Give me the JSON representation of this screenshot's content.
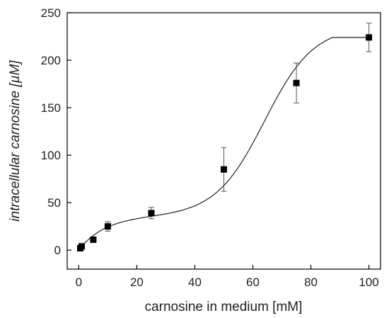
{
  "chart_data": {
    "type": "scatter",
    "title": "",
    "xlabel": "carnosine in medium [mM]",
    "ylabel": "intracellular carnosine [µM]",
    "xlim": [
      -4,
      104
    ],
    "ylim": [
      -20,
      250
    ],
    "xticks": [
      0,
      20,
      40,
      60,
      80,
      100
    ],
    "yticks": [
      0,
      50,
      100,
      150,
      200,
      250
    ],
    "grid": false,
    "legend": "none",
    "series": [
      {
        "marker": "filled-square",
        "x": [
          0.5,
          1,
          5,
          10,
          25,
          50,
          75,
          100
        ],
        "y": [
          2,
          4,
          11,
          25,
          39,
          85,
          176,
          224
        ],
        "err": [
          1,
          1.5,
          2.5,
          5,
          6,
          23,
          21,
          15
        ]
      }
    ],
    "fit_curve": {
      "style": "smooth line",
      "x": [
        0,
        2.5,
        5,
        7.5,
        10,
        12.5,
        15,
        17.5,
        20,
        22.5,
        25,
        27.5,
        30,
        32.5,
        35,
        37.5,
        40,
        42.5,
        45,
        47.5,
        50,
        52.5,
        55,
        57.5,
        60,
        62.5,
        65,
        67.5,
        70,
        72.5,
        75,
        77.5,
        80,
        82.5,
        85,
        87.5,
        90,
        92.5,
        95,
        97.5,
        100
      ],
      "y": [
        1,
        6,
        12,
        19,
        24,
        28,
        31,
        33,
        35,
        37,
        39,
        41,
        44,
        47,
        51,
        56,
        61,
        67,
        74,
        81,
        89,
        98,
        109,
        122,
        135,
        148,
        161,
        170,
        180,
        190,
        174,
        184,
        193,
        201,
        207,
        213,
        217,
        220,
        222,
        223,
        224
      ]
    },
    "colors": {
      "marker": "#000000",
      "line": "#222222",
      "axis": "#000000"
    }
  }
}
